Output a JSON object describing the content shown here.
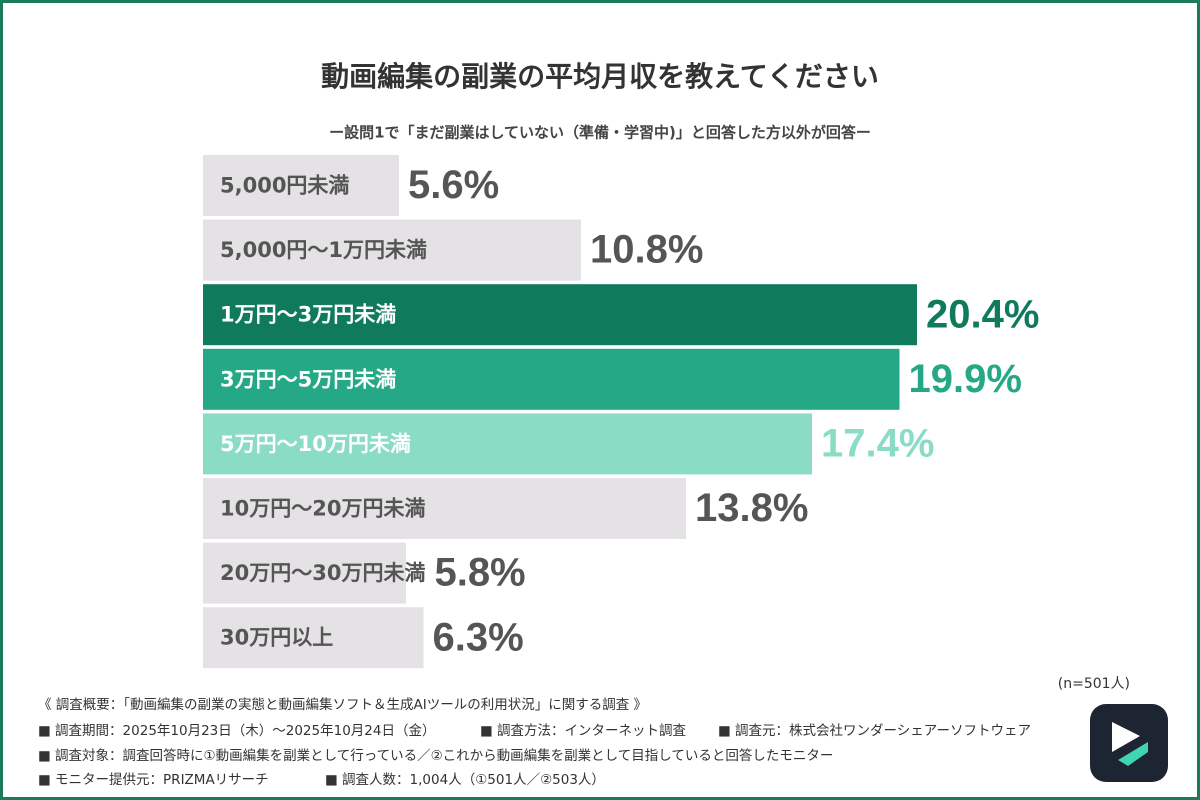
{
  "chart_data": {
    "type": "bar",
    "title": "動画編集の副業の平均月収を教えてください",
    "subtitle": "ー設問1で「まだ副業はしていない（準備・学習中)」と回答した方以外が回答ー",
    "categories": [
      "5,000円未満",
      "5,000円〜1万円未満",
      "1万円〜3万円未満",
      "3万円〜5万円未満",
      "5万円〜10万円未満",
      "10万円〜20万円未満",
      "20万円〜30万円未満",
      "30万円以上"
    ],
    "values": [
      5.6,
      10.8,
      20.4,
      19.9,
      17.4,
      13.8,
      5.8,
      6.3
    ],
    "value_labels": [
      "5.6%",
      "10.8%",
      "20.4%",
      "19.9%",
      "17.4%",
      "13.8%",
      "5.8%",
      "6.3%"
    ],
    "colors": [
      "#e4e2e4",
      "#e4e2e4",
      "#0f7a5c",
      "#25a886",
      "#8adcc5",
      "#e4e2e4",
      "#e4e2e4",
      "#e4e2e4"
    ],
    "sample_size": "(n=501人)",
    "notes": [
      [
        "《 調査概要：「動画編集の副業の実態と動画編集ソフト＆生成AIツールの利用状況」に関する調査 》"
      ],
      [
        "■ 調査期間：2025年10月23日（木）〜2025年10月24日（金）",
        "■ 調査方法：インターネット調査",
        "■ 調査元：株式会社ワンダーシェアーソフトウェア"
      ],
      [
        "■ 調査対象：調査回答時に①動画編集を副業として行っている／②これから動画編集を副業として目指していると回答したモニター"
      ],
      [
        "■ モニター提供元：PRIZMAリサーチ",
        "■ 調査人数：1,004人（①501人／②503人）"
      ]
    ]
  }
}
